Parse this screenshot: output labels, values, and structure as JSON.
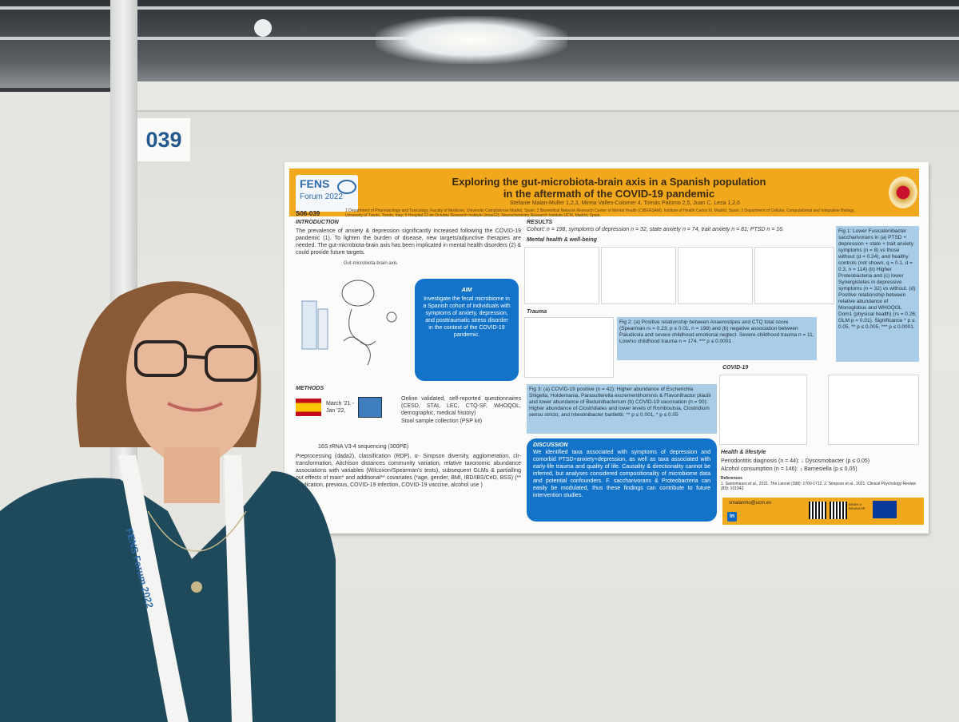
{
  "board_number": "039",
  "poster": {
    "code": "S06-039",
    "logo": {
      "fens": "FENS",
      "forum": "Forum 2022"
    },
    "title_line1": "Exploring the gut-microbiota-brain axis in a Spanish population",
    "title_line2": "in the aftermath of the COVID-19 pandemic",
    "authors": "Stefanie Malan-Muller 1,2,3, Mireia Valles-Colomer 4, Tomás Palomo 2,5, Juan C. Leza 1,2,6",
    "affiliations": "1 Department of Pharmacology and Toxicology, Faculty of Medicine, University Complutense Madrid, Spain; 2 Biomedical Network Research Center of Mental Health (CIBERSAM), Institute of Health Carlos III, Madrid, Spain; 3 Department of Cellular, Computational and Integrative Biology, University of Trento, Trento, Italy; 5 Hospital 12 de Octubre Research Institute (imas12); Neurochemistry Research Institute UCM, Madrid, Spain.",
    "intro_heading": "INTRODUCTION",
    "intro_text": "The prevalence of anxiety & depression significantly increased following the COVID-19 pandemic (1). To lighten the burden of disease, new targets/adjunctive therapies are needed. The gut-microbiota-brain axis has been implicated in mental health disorders (2) & could provide future targets.",
    "sketch_label": "Gut-microbiota-brain axis",
    "aim_heading": "AIM",
    "aim_text": "Investigate the fecal microbiome in a Spanish cohort of individuals with symptoms of anxiety, depression, and posttraumatic stress disorder in the context of the COVID-19 pandemic.",
    "methods_heading": "METHODS",
    "methods_date": "March '21 - Jan '22,",
    "methods_text": "Online validated, self-reported questionnaires (CESD, STAI, LEC, CTQ-SF, WHOQOL, demographic, medical history)",
    "methods_stool": "Stool sample collection (PSP kit)",
    "methods_seq": "16S rRNA V3-4 sequencing (300PE)",
    "methods_proc": "Preprocessing (dada2), classification (RDP), α- Simpson diversity, agglomeration, clr- transformation, Aitchison distances community variation, relative taxonomic abundance associations with variables (Wilcoxon/Spearman's tests), subsequent GLMs & partialling out effects of main* and additional** covariates (*age, gender, BMI, IBD/IBS/CeD, BSS) (** medication, previous, COVID-19 infection, COVID-19 vaccine, alcohol use )",
    "results_heading": "RESULTS",
    "cohort_text": "Cohort: n = 198, symptoms of depression n = 32, state anxiety n = 74, trait anxiety n = 81, PTSD n = 16.",
    "mh_heading": "Mental health & well-being",
    "trauma_heading": "Trauma",
    "covid_heading": "COVID-19",
    "fig1_text": "Fig 1: Lower Fusicatenibacter saccharivorans in (a) PTSD + depression + state + trait anxiety symptoms (n = 8) vs those without (d = 0.24), and healthy controls (not shown, q = 0.1, d = 0.3, n = 114) (b) Higher Proteobacteria and (c) lower Synergistetes in depressive symptoms (n = 32) vs without. (d) Positive relationship between relative abundance of Monoglobus and WHOQOL Dom1 (physical health) (rs = 0.26; GLM p = 0.01). Significance * p ≤ 0.05, ** p ≤ 0.005, *** p ≤ 0.0001.",
    "fig2_text": "Fig 2: (a) Positive relationship between Anaerostipes and CTQ total score (Spearman rs = 0.23; p ≤ 0.01, n = 198) and (b) negative association between Paludicola and severe childhood emotional neglect. Severe childhood trauma n = 11, Low/no childhood trauma n = 174. *** p ≤ 0.0001",
    "fig3_text": "Fig 3: (a) COVID-19 positive (n = 42): Higher abundance of Escherichia Shigella, Holdemania, Parasutterella excrementihominis & Flavonifractor plautii and lower abundance of Beduinibacterium (b) COVID-19 vaccination (n = 90): Higher abundance of Clostridiales and lower levels of Romboutsia, Clostridium sensu stricto, and Intestinibacter bartlettii. ** p ≤ 0.001, * p ≤ 0.05",
    "disc_heading": "DISCUSSION",
    "disc_text": "We identified taxa associated with symptoms of depression and comorbid PTSD+anxiety+depression, as well as taxa associated with early-life trauma and quality of life. Causality & directionality cannot be inferred, but analyses considered compositionality of microbiome data and potential confounders. F. saccharivorans & Proteobacteria can easily be modulated, thus these findings can contribute to future intervention studies.",
    "health_heading": "Health & lifestyle",
    "health_line1": "Periodontitis diagnosis (n = 44): ↓ Dysosmobacter (p ≤ 0.05)",
    "health_line2": "Alcohol consumption (n = 146): ↓ Barnesiella (p ≤ 0.05)",
    "refs_heading": "References",
    "refs_text": "1. Santomauro et al., 2021. The Lancet (398): 1700-1712. 2. Simpson et al., 2021. Clinical Psychology Review (83): 101943",
    "email": "smalanmu@ucm.es",
    "linkedin": "in",
    "sponsor_text": "BRAIN & BEHAVIOR"
  },
  "lanyard_text": "FENS Forum 2022",
  "colors": {
    "banner": "#f2a81c",
    "blue": "#1273c9",
    "light_blue": "#a9cde7"
  }
}
